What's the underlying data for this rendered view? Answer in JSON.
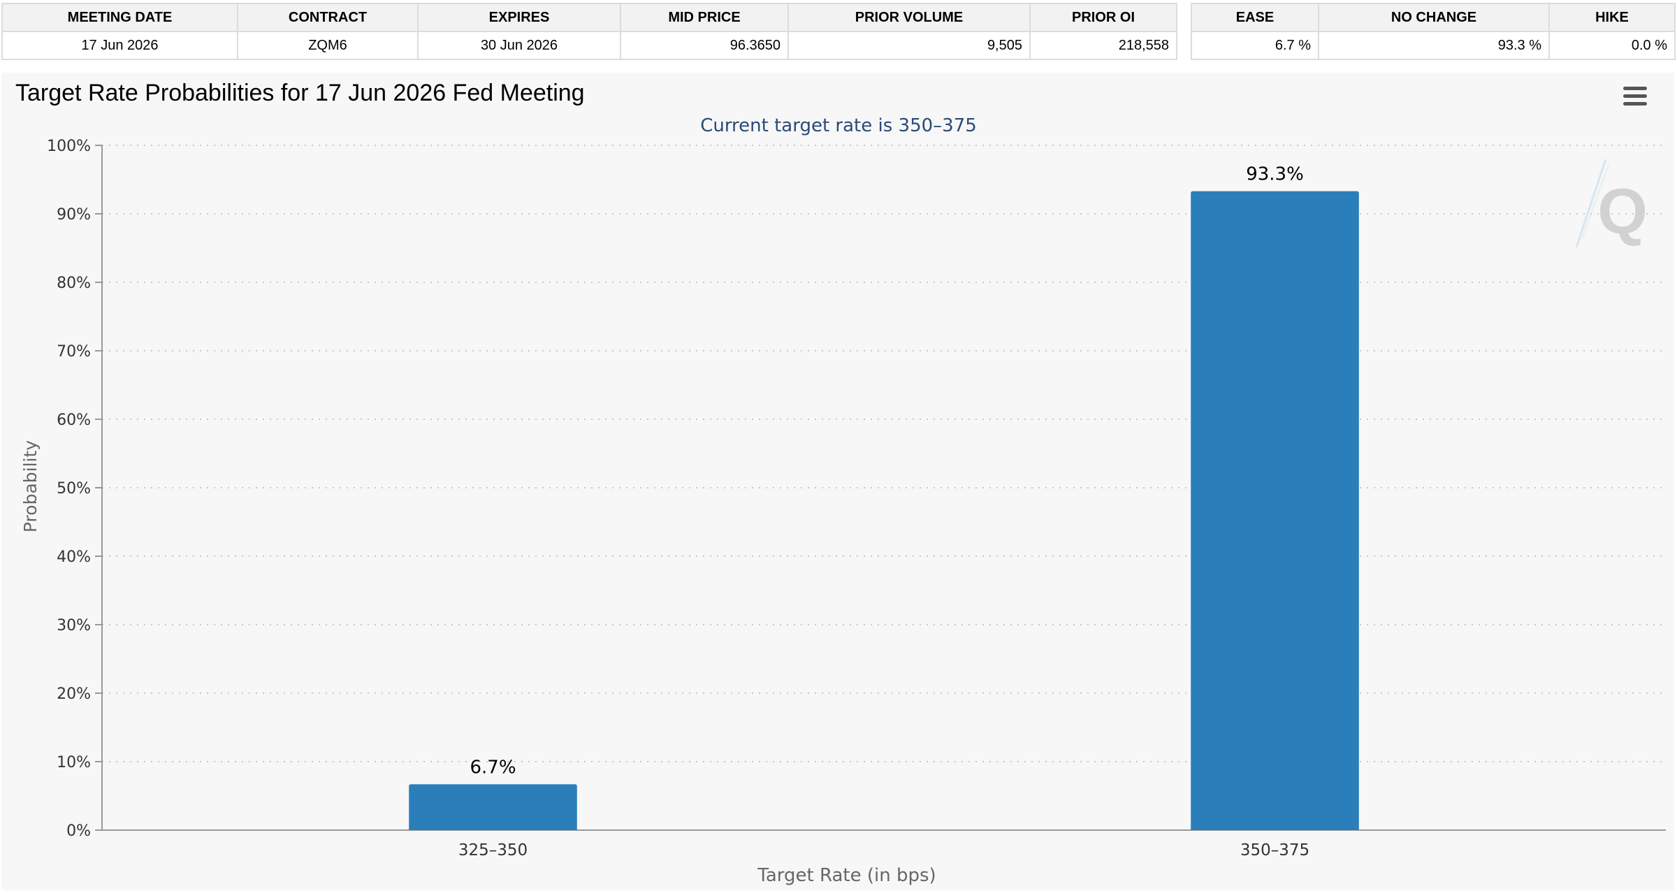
{
  "meeting_table": {
    "headers": [
      "MEETING DATE",
      "CONTRACT",
      "EXPIRES",
      "MID PRICE",
      "PRIOR VOLUME",
      "PRIOR OI"
    ],
    "row": [
      "17 Jun 2026",
      "ZQM6",
      "30 Jun 2026",
      "96.3650",
      "9,505",
      "218,558"
    ]
  },
  "probability_table": {
    "headers": [
      "EASE",
      "NO CHANGE",
      "HIKE"
    ],
    "row": [
      "6.7 %",
      "93.3 %",
      "0.0 %"
    ]
  },
  "chart": {
    "title": "Target Rate Probabilities for 17 Jun 2026 Fed Meeting",
    "menu_icon": "hamburger-menu-icon",
    "watermark_icon": "q-logo-watermark-icon"
  },
  "chart_data": {
    "type": "bar",
    "title": "Target Rate Probabilities for 17 Jun 2026 Fed Meeting",
    "subtitle": "Current target rate is 350–375",
    "xlabel": "Target Rate (in bps)",
    "ylabel": "Probability",
    "categories": [
      "325–350",
      "350–375"
    ],
    "values": [
      6.7,
      93.3
    ],
    "data_labels": [
      "6.7%",
      "93.3%"
    ],
    "ylim": [
      0,
      100
    ],
    "yticks": [
      0,
      10,
      20,
      30,
      40,
      50,
      60,
      70,
      80,
      90,
      100
    ],
    "ytick_labels": [
      "0%",
      "10%",
      "20%",
      "30%",
      "40%",
      "50%",
      "60%",
      "70%",
      "80%",
      "90%",
      "100%"
    ],
    "grid": true,
    "legend": "none",
    "bar_color": "#2a7fba",
    "subtitle_color": "#2a4a78"
  }
}
